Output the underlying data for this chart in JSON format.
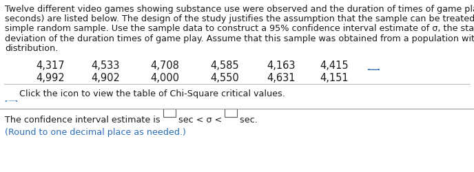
{
  "para_lines": [
    "Twelve different video games showing substance use were observed and the duration of times of game play (in",
    "seconds) are listed below. The design of the study justifies the assumption that the sample can be treated as a",
    "simple random sample. Use the sample data to construct a 95% confidence interval estimate of σ, the standard",
    "deviation of the duration times of game play. Assume that this sample was obtained from a population with a normal",
    "distribution."
  ],
  "row1": [
    "4,317",
    "4,533",
    "4,708",
    "4,585",
    "4,163",
    "4,415"
  ],
  "row2": [
    "4,992",
    "4,902",
    "4,000",
    "4,550",
    "4,631",
    "4,151"
  ],
  "click_text": "Click the icon to view the table of Chi-Square critical values.",
  "ci_before": "The confidence interval estimate is ",
  "ci_middle": " sec < σ < ",
  "ci_after": " sec.",
  "round_text": "(Round to one decimal place as needed.)",
  "bg_color": "#ffffff",
  "text_color": "#1a1a1a",
  "blue_color": "#2a6db5",
  "para_fs": 9.2,
  "data_fs": 10.5,
  "ci_fs": 9.2
}
